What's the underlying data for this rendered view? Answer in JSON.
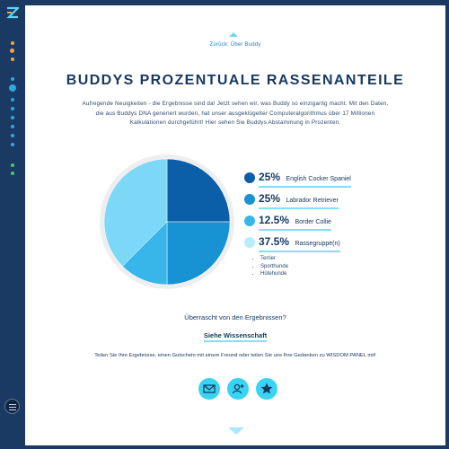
{
  "nav": {
    "back_link": "Zurück: Über Buddy"
  },
  "header": {
    "title": "BUDDYS PROZENTUALE RASSENANTEILE"
  },
  "intro": {
    "text": "Aufregende Neuigkeiten - die Ergebnisse sind da! Jetzt sehen wir, was Buddy so einzigartig macht. Mit den Daten, die aus Buddys DNA generiert wurden, hat unser ausgeklügelter Computeralgorithmus über 17 Millionen Kalkulationen durchgeführt! Hier sehen Sie Buddys Abstammung in Prozenten."
  },
  "breakdown": {
    "items": [
      {
        "percent": "25%",
        "percent_value": 25,
        "name": "English Cocker Spaniel",
        "color": "#0b5ea8"
      },
      {
        "percent": "25%",
        "percent_value": 25,
        "name": "Labrador Retriever",
        "color": "#1793d3"
      },
      {
        "percent": "12.5%",
        "percent_value": 12.5,
        "name": "Border Collie",
        "color": "#38b6e9"
      },
      {
        "percent": "37.5%",
        "percent_value": 37.5,
        "name": "Rassegruppe(n)",
        "color": "#7dd7f6"
      }
    ],
    "groups": [
      "Terrier",
      "Sporthunde",
      "Hütehunde"
    ]
  },
  "science": {
    "question": "Überrascht von den Ergebnissen?",
    "link": "Siehe Wissenschaft"
  },
  "share": {
    "text": "Teilen Sie Ihre Ergebnisse, einen Gutschein mit einem Freund oder teilen Sie uns Ihre Gedanken zu WISDOM PANEL mit!",
    "buttons": [
      "mail-icon",
      "add-friend-icon",
      "star-icon"
    ]
  },
  "sidebar": {
    "logo": "wisdom-panel-logo-icon",
    "menu": "menu-icon"
  },
  "colors": {
    "brand_dark": "#1b3a63",
    "accent": "#39d3f3",
    "title": "#173a62",
    "underline": "#7fe0f7"
  }
}
